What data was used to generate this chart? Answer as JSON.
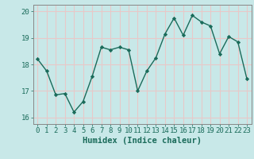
{
  "x": [
    0,
    1,
    2,
    3,
    4,
    5,
    6,
    7,
    8,
    9,
    10,
    11,
    12,
    13,
    14,
    15,
    16,
    17,
    18,
    19,
    20,
    21,
    22,
    23
  ],
  "y": [
    18.2,
    17.75,
    16.85,
    16.9,
    16.2,
    16.6,
    17.55,
    18.65,
    18.55,
    18.65,
    18.55,
    17.0,
    17.75,
    18.25,
    19.15,
    19.75,
    19.1,
    19.85,
    19.6,
    19.45,
    18.4,
    19.05,
    18.85,
    17.45
  ],
  "line_color": "#1a6b5a",
  "marker": "D",
  "marker_size": 2.2,
  "background_color": "#c8e8e8",
  "grid_color": "#e8c8c8",
  "xlabel": "Humidex (Indice chaleur)",
  "xlim": [
    -0.5,
    23.5
  ],
  "ylim": [
    15.75,
    20.25
  ],
  "yticks": [
    16,
    17,
    18,
    19,
    20
  ],
  "xticks": [
    0,
    1,
    2,
    3,
    4,
    5,
    6,
    7,
    8,
    9,
    10,
    11,
    12,
    13,
    14,
    15,
    16,
    17,
    18,
    19,
    20,
    21,
    22,
    23
  ],
  "tick_color": "#1a6b5a",
  "label_color": "#1a6b5a",
  "tick_fontsize": 6.5,
  "xlabel_fontsize": 7.5,
  "line_width": 1.0,
  "spine_color": "#888888"
}
